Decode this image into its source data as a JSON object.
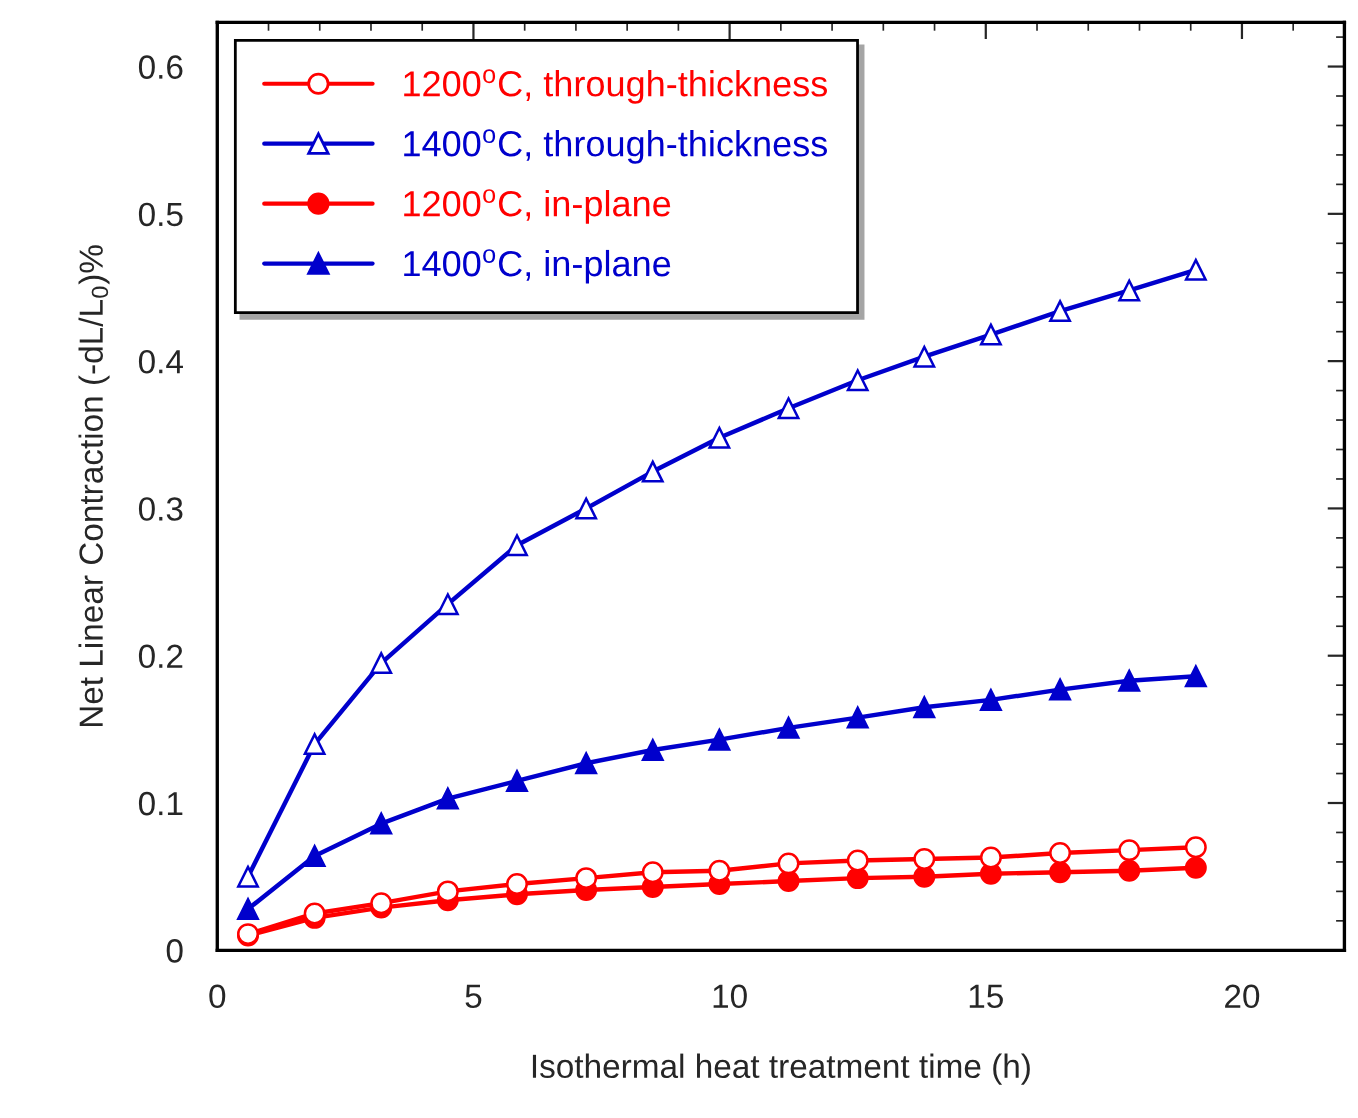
{
  "chart_data": {
    "type": "line",
    "xlabel": "Isothermal heat treatment time (h)",
    "ylabel": "Net Linear Contraction (-dL/L$_{0}$)%",
    "x": [
      0.6,
      1.9,
      3.2,
      4.5,
      5.85,
      7.2,
      8.5,
      9.8,
      11.15,
      12.5,
      13.8,
      15.1,
      16.45,
      17.8,
      19.1
    ],
    "series": [
      {
        "name": "1200$^{o}$C, through-thickness",
        "color": "#ff0000",
        "marker": "circle",
        "values": [
          0.011,
          0.025,
          0.032,
          0.04,
          0.045,
          0.049,
          0.053,
          0.054,
          0.059,
          0.061,
          0.062,
          0.063,
          0.066,
          0.068,
          0.07
        ]
      },
      {
        "name": "1400$^{o}$C, through-thickness",
        "color": "#0000cc",
        "marker": "triangle",
        "values": [
          0.05,
          0.14,
          0.195,
          0.235,
          0.275,
          0.3,
          0.325,
          0.348,
          0.368,
          0.387,
          0.403,
          0.418,
          0.434,
          0.448,
          0.462
        ]
      },
      {
        "name": "1200$^{o}$C, in-plane",
        "color": "#ff0000",
        "marker": "circle",
        "values": [
          0.01,
          0.022,
          0.029,
          0.034,
          0.038,
          0.041,
          0.043,
          0.045,
          0.047,
          0.049,
          0.05,
          0.052,
          0.053,
          0.054,
          0.056
        ]
      },
      {
        "name": "1400$^{o}$C, in-plane",
        "color": "#0000cc",
        "marker": "triangle",
        "values": [
          0.028,
          0.064,
          0.086,
          0.103,
          0.115,
          0.127,
          0.136,
          0.143,
          0.151,
          0.158,
          0.165,
          0.17,
          0.177,
          0.183,
          0.186
        ]
      }
    ],
    "xlim": [
      0,
      22
    ],
    "ylim": [
      0,
      0.63
    ],
    "xticks": [
      0,
      5,
      10,
      15,
      20
    ],
    "yticks": [
      0,
      0.1,
      0.2,
      0.3,
      0.4,
      0.5,
      0.6
    ],
    "grid": false,
    "legend": "top left",
    "line_style": "solid"
  }
}
